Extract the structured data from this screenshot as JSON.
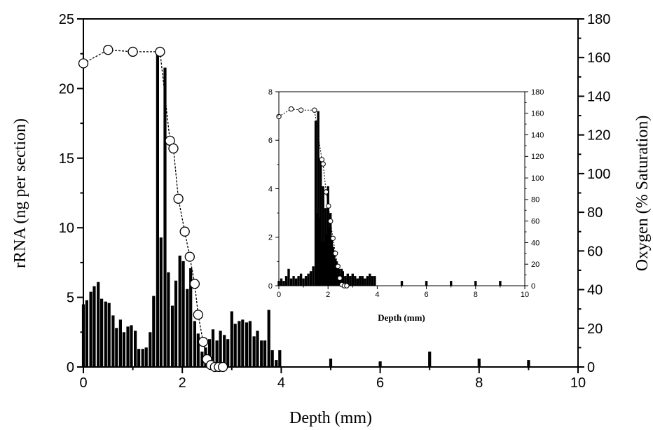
{
  "chart_data": [
    {
      "type": "bar",
      "title": "",
      "xlabel": "Depth (mm)",
      "ylabel": "rRNA (ng per section)",
      "y2label": "Oxygen (% Saturation)",
      "xlim": [
        0,
        10
      ],
      "ylim": [
        0,
        25
      ],
      "y2lim": [
        0,
        180
      ],
      "xticks": [
        "0",
        "2",
        "4",
        "6",
        "8",
        "10"
      ],
      "yticks": [
        "0",
        "5",
        "10",
        "15",
        "20",
        "25"
      ],
      "y2ticks": [
        "0",
        "20",
        "40",
        "60",
        "80",
        "100",
        "120",
        "140",
        "160",
        "180"
      ],
      "grid": false,
      "series": [
        {
          "name": "",
          "kind": "bar",
          "color": "#000000",
          "x": [
            0.0,
            0.07,
            0.15,
            0.22,
            0.3,
            0.37,
            0.45,
            0.52,
            0.6,
            0.67,
            0.75,
            0.82,
            0.9,
            0.97,
            1.05,
            1.12,
            1.2,
            1.27,
            1.35,
            1.42,
            1.5,
            1.57,
            1.65,
            1.72,
            1.8,
            1.87,
            1.95,
            2.02,
            2.1,
            2.17,
            2.25,
            2.32,
            2.4,
            2.47,
            2.55,
            2.62,
            2.7,
            2.77,
            2.85,
            2.92,
            3.0,
            3.07,
            3.15,
            3.22,
            3.3,
            3.37,
            3.45,
            3.52,
            3.6,
            3.67,
            3.75,
            3.82,
            3.9,
            3.97,
            5.0,
            6.0,
            7.0,
            8.0,
            9.0
          ],
          "values": [
            4.5,
            4.8,
            5.4,
            5.8,
            6.1,
            4.9,
            4.7,
            4.6,
            3.7,
            2.8,
            3.4,
            2.5,
            2.9,
            3.0,
            2.6,
            1.3,
            1.3,
            1.4,
            2.5,
            5.1,
            22.8,
            9.3,
            21.5,
            6.8,
            4.4,
            6.2,
            8.0,
            7.6,
            5.6,
            7.1,
            3.3,
            2.4,
            1.1,
            1.4,
            2.0,
            2.7,
            1.9,
            2.6,
            2.3,
            2.0,
            4.0,
            3.1,
            3.3,
            3.4,
            3.2,
            3.3,
            2.2,
            2.6,
            1.9,
            1.9,
            4.1,
            1.2,
            0.5,
            1.2,
            0.6,
            0.4,
            1.1,
            0.6,
            0.5
          ]
        },
        {
          "name": "",
          "kind": "line-marker",
          "axis": "y2",
          "x": [
            0.0,
            0.5,
            1.0,
            1.55,
            1.75,
            1.82,
            1.92,
            2.05,
            2.15,
            2.25,
            2.32,
            2.42,
            2.5,
            2.58,
            2.66,
            2.74,
            2.82
          ],
          "values": [
            157,
            164,
            163,
            163,
            117,
            113,
            87,
            70,
            57,
            43,
            27,
            13,
            4,
            1,
            0,
            0,
            0
          ]
        }
      ]
    },
    {
      "type": "bar",
      "title": "",
      "xlabel": "Depth (mm)",
      "ylabel": "",
      "y2label": "",
      "xlim": [
        0,
        10
      ],
      "ylim": [
        0,
        8
      ],
      "y2lim": [
        0,
        180
      ],
      "xticks": [
        "0",
        "2",
        "4",
        "6",
        "8",
        "10"
      ],
      "yticks": [
        "0",
        "2",
        "4",
        "6",
        "8"
      ],
      "y2ticks": [
        "0",
        "20",
        "40",
        "60",
        "80",
        "100",
        "120",
        "140",
        "160",
        "180"
      ],
      "grid": false,
      "series": [
        {
          "name": "",
          "kind": "bar",
          "color": "#000000",
          "x": [
            0.0,
            0.1,
            0.2,
            0.3,
            0.4,
            0.5,
            0.6,
            0.7,
            0.8,
            0.9,
            1.0,
            1.1,
            1.2,
            1.3,
            1.4,
            1.5,
            1.55,
            1.6,
            1.65,
            1.7,
            1.75,
            1.8,
            1.85,
            1.9,
            1.95,
            2.0,
            2.05,
            2.1,
            2.15,
            2.2,
            2.25,
            2.3,
            2.35,
            2.4,
            2.45,
            2.5,
            2.55,
            2.6,
            2.7,
            2.8,
            2.9,
            3.0,
            3.1,
            3.2,
            3.3,
            3.4,
            3.5,
            3.6,
            3.7,
            3.8,
            3.9,
            5.0,
            6.0,
            7.0,
            8.0,
            9.0
          ],
          "values": [
            0.2,
            0.3,
            0.2,
            0.4,
            0.7,
            0.3,
            0.4,
            0.3,
            0.4,
            0.5,
            0.3,
            0.4,
            0.5,
            0.6,
            0.8,
            6.8,
            3.0,
            7.2,
            2.8,
            5.2,
            1.8,
            4.1,
            1.8,
            3.2,
            2.1,
            4.1,
            2.4,
            3.0,
            2.0,
            1.6,
            1.4,
            1.1,
            1.0,
            0.8,
            0.7,
            0.5,
            0.7,
            0.6,
            0.4,
            0.5,
            0.4,
            0.5,
            0.4,
            0.3,
            0.4,
            0.4,
            0.3,
            0.4,
            0.5,
            0.4,
            0.4,
            0.2,
            0.2,
            0.2,
            0.2,
            0.2
          ]
        },
        {
          "name": "",
          "kind": "line-marker",
          "axis": "y2",
          "x": [
            0.0,
            0.5,
            0.9,
            1.45,
            1.75,
            1.8,
            1.92,
            2.02,
            2.1,
            2.2,
            2.3,
            2.4,
            2.48,
            2.56,
            2.66,
            2.76
          ],
          "values": [
            157,
            164,
            163,
            163,
            117,
            113,
            87,
            74,
            60,
            44,
            30,
            18,
            7,
            1,
            0,
            0
          ]
        }
      ]
    }
  ]
}
